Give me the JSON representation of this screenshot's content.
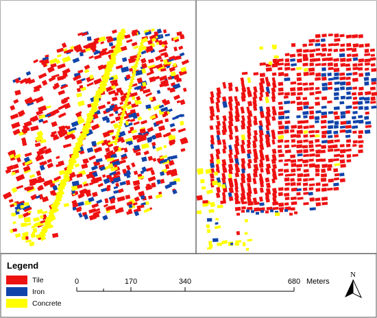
{
  "colors": {
    "tile": "#ee1111",
    "iron": "#1144aa",
    "concrete": "#ffff00"
  },
  "legend": {
    "title": "Legend",
    "items": [
      {
        "label": "Tile",
        "color": "#ee1111"
      },
      {
        "label": "Iron",
        "color": "#1144aa"
      },
      {
        "label": "Concrete",
        "color": "#ffff00"
      }
    ]
  },
  "scale_bar": {
    "ticks": [
      "0",
      "170",
      "340",
      "680"
    ],
    "unit": "Meters"
  },
  "north_arrow": {
    "label": "N"
  },
  "panels": [
    {
      "name": "left-map-panel"
    },
    {
      "name": "right-map-panel"
    }
  ]
}
